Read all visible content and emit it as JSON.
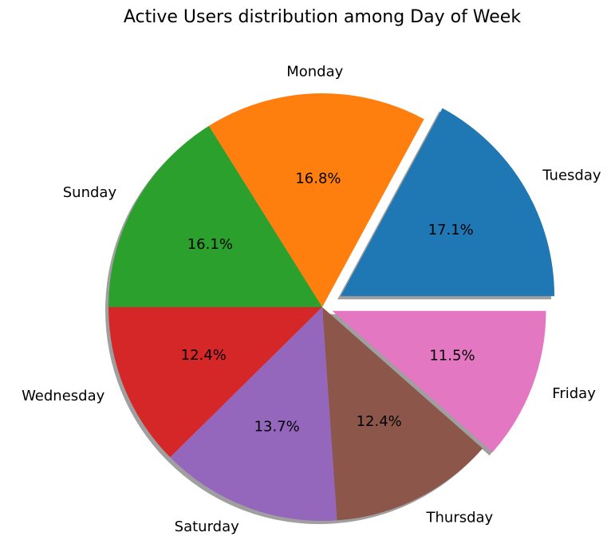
{
  "chart_data": {
    "type": "pie",
    "title": "Active Users distribution among Day of Week",
    "start_angle_deg": 0,
    "direction": "counterclockwise",
    "shadow": true,
    "slices": [
      {
        "label": "Tuesday",
        "value": 17.1,
        "pct_label": "17.1%",
        "color": "#1f77b4",
        "explode": 0.1
      },
      {
        "label": "Monday",
        "value": 16.8,
        "pct_label": "16.8%",
        "color": "#ff7f0e",
        "explode": 0.0
      },
      {
        "label": "Sunday",
        "value": 16.1,
        "pct_label": "16.1%",
        "color": "#2ca02c",
        "explode": 0.0
      },
      {
        "label": "Wednesday",
        "value": 12.4,
        "pct_label": "12.4%",
        "color": "#d62728",
        "explode": 0.0
      },
      {
        "label": "Saturday",
        "value": 13.7,
        "pct_label": "13.7%",
        "color": "#9467bd",
        "explode": 0.0
      },
      {
        "label": "Thursday",
        "value": 12.4,
        "pct_label": "12.4%",
        "color": "#8c564b",
        "explode": 0.0
      },
      {
        "label": "Friday",
        "value": 11.5,
        "pct_label": "11.5%",
        "color": "#e377c2",
        "explode": 0.05
      }
    ]
  }
}
